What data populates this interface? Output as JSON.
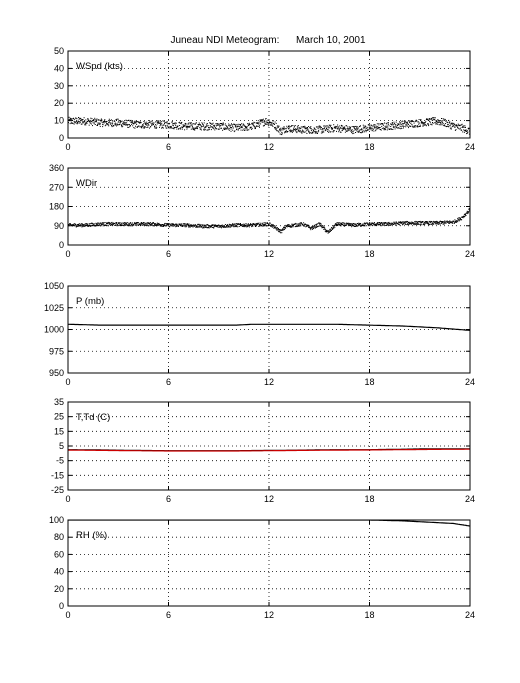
{
  "figure": {
    "title": "Juneau NDI Meteogram:      March 10, 2001"
  },
  "chart_data": [
    {
      "type": "scatter",
      "label": "WSpd (kts)",
      "ylim": [
        0,
        50
      ],
      "yticks": [
        0,
        10,
        20,
        30,
        40,
        50
      ],
      "xlim": [
        0,
        24
      ],
      "xticks": [
        0,
        6,
        12,
        18,
        24
      ],
      "grid": true,
      "series": [
        {
          "color": "#000000",
          "style": "points",
          "x": [
            0,
            1,
            2,
            3,
            4,
            5,
            6,
            7,
            8,
            9,
            10,
            11,
            11.8,
            12.3,
            12.7,
            13,
            14,
            15,
            16,
            17,
            18,
            19,
            20,
            21,
            22,
            22.5,
            23,
            23.5,
            24
          ],
          "y": [
            10,
            10,
            9,
            9,
            8,
            8,
            8,
            7,
            7,
            7,
            6,
            7,
            10,
            8,
            4,
            6,
            5,
            5,
            6,
            5,
            6,
            7,
            8,
            9,
            10,
            9,
            7,
            6,
            4
          ]
        }
      ]
    },
    {
      "type": "scatter",
      "label": "WDir",
      "ylim": [
        0,
        360
      ],
      "yticks": [
        0,
        90,
        180,
        270,
        360
      ],
      "xlim": [
        0,
        24
      ],
      "xticks": [
        0,
        6,
        12,
        18,
        24
      ],
      "grid": true,
      "series": [
        {
          "color": "#000000",
          "style": "points",
          "x": [
            0,
            1,
            2,
            3,
            4,
            5,
            6,
            7,
            8,
            9,
            10,
            11,
            12,
            12.7,
            13,
            14,
            14.5,
            15,
            15.5,
            16,
            17,
            18,
            19,
            20,
            21,
            22,
            23,
            23.5,
            24
          ],
          "y": [
            95,
            95,
            100,
            100,
            100,
            100,
            95,
            95,
            90,
            90,
            95,
            95,
            100,
            65,
            90,
            100,
            80,
            100,
            60,
            100,
            95,
            100,
            100,
            105,
            105,
            105,
            110,
            130,
            170
          ]
        }
      ]
    },
    {
      "type": "line",
      "label": "P (mb)",
      "ylim": [
        950,
        1050
      ],
      "yticks": [
        950,
        975,
        1000,
        1025,
        1050
      ],
      "xlim": [
        0,
        24
      ],
      "xticks": [
        0,
        6,
        12,
        18,
        24
      ],
      "grid": true,
      "series": [
        {
          "color": "#000000",
          "style": "line",
          "x": [
            0,
            2,
            4,
            6,
            8,
            10,
            11,
            12,
            13,
            14,
            16,
            18,
            20,
            22,
            24
          ],
          "y": [
            1006,
            1005,
            1005,
            1005,
            1005,
            1005,
            1006,
            1006,
            1006,
            1006,
            1006,
            1005,
            1004,
            1002,
            999
          ]
        }
      ]
    },
    {
      "type": "line",
      "label": "T,Td (C)",
      "ylim": [
        -25,
        35
      ],
      "yticks": [
        -25,
        -15,
        -5,
        5,
        15,
        25,
        35
      ],
      "xlim": [
        0,
        24
      ],
      "xticks": [
        0,
        6,
        12,
        18,
        24
      ],
      "grid": true,
      "series": [
        {
          "color": "#000000",
          "style": "line",
          "x": [
            0,
            2,
            4,
            6,
            8,
            10,
            12,
            14,
            16,
            18,
            20,
            21,
            22,
            24
          ],
          "y": [
            2.5,
            2.3,
            2,
            1.8,
            1.8,
            1.8,
            2,
            2.2,
            2.5,
            2.5,
            2.8,
            3,
            3,
            3
          ]
        },
        {
          "color": "#cc0000",
          "style": "line",
          "x": [
            0,
            2,
            4,
            6,
            8,
            10,
            12,
            14,
            16,
            18,
            20,
            22,
            24
          ],
          "y": [
            2.2,
            2,
            1.8,
            1.6,
            1.6,
            1.6,
            1.8,
            2,
            2.2,
            2.3,
            2.5,
            2.7,
            2.8
          ]
        }
      ]
    },
    {
      "type": "line",
      "label": "RH (%)",
      "ylim": [
        0,
        100
      ],
      "yticks": [
        0,
        20,
        40,
        60,
        80,
        100
      ],
      "xlim": [
        0,
        24
      ],
      "xticks": [
        0,
        6,
        12,
        18,
        24
      ],
      "grid": true,
      "series": [
        {
          "color": "#000000",
          "style": "line",
          "x": [
            0,
            2,
            4,
            6,
            8,
            10,
            12,
            14,
            16,
            18,
            20,
            21,
            22,
            23,
            24
          ],
          "y": [
            100,
            100,
            100,
            100,
            100,
            100,
            100,
            100,
            100,
            100,
            99,
            98,
            97,
            96,
            93
          ]
        }
      ]
    }
  ]
}
